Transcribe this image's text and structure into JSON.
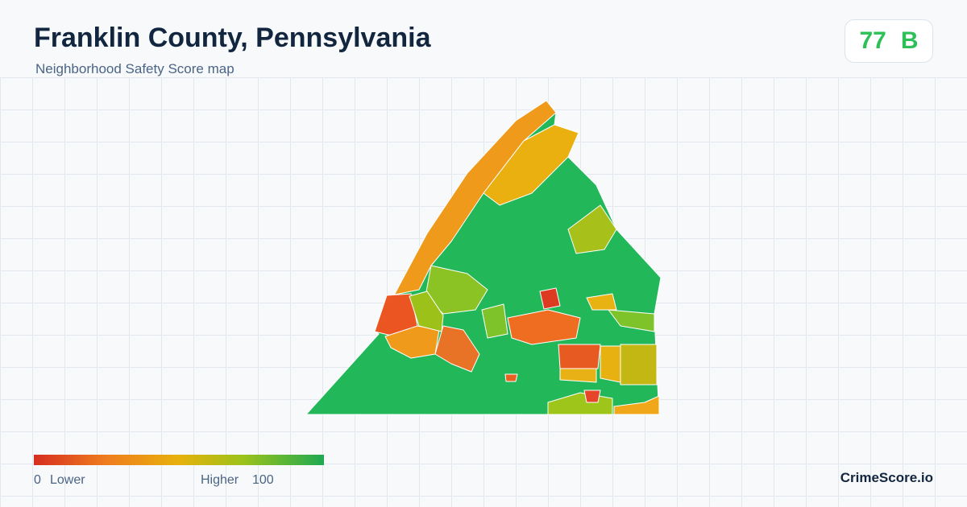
{
  "header": {
    "title": "Franklin County, Pennsylvania",
    "subtitle": "Neighborhood Safety Score map"
  },
  "badge": {
    "score": "77",
    "grade": "B"
  },
  "legend": {
    "min": "0",
    "min_label": "Lower",
    "max_label": "Higher",
    "max": "100"
  },
  "footer": {
    "brand": "CrimeScore.io"
  }
}
